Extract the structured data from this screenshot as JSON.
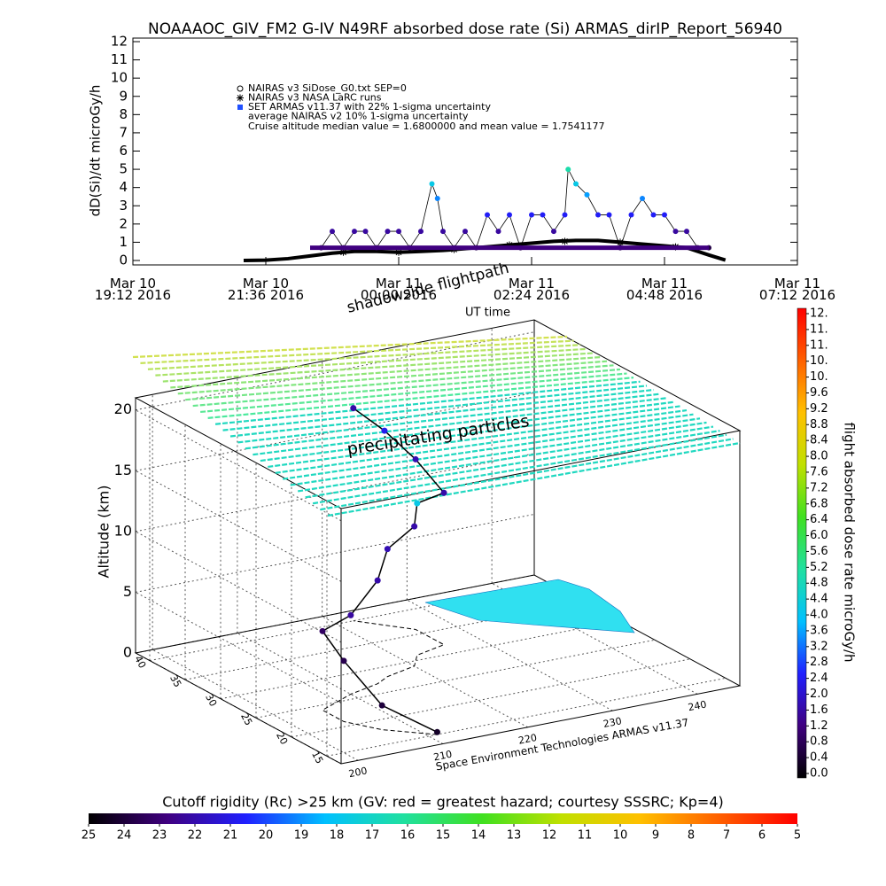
{
  "chart_data": [
    {
      "type": "scatter",
      "title": "NOAAAOC_GIV_FM2 G-IV   N49RF  absorbed dose rate (Si) ARMAS_dirIP_Report_56940",
      "ylabel": "dD(Si)/dt microGy/h",
      "xlim": [
        19.2,
        31.2
      ],
      "xticks": [
        {
          "value": 19.2,
          "label": "Mar 10\n19:12 2016"
        },
        {
          "value": 21.6,
          "label": "Mar 10\n21:36 2016"
        },
        {
          "value": 24,
          "label": "Mar 11\n00:00 2016"
        },
        {
          "value": 26.4,
          "label": "Mar 11\n02:24 2016"
        },
        {
          "value": 28.8,
          "label": "Mar 11\n04:48 2016"
        },
        {
          "value": 31.2,
          "label": "Mar 11\n07:12 2016"
        }
      ],
      "ylim": [
        0,
        12
      ],
      "yticks": [
        0,
        1,
        2,
        3,
        4,
        5,
        6,
        7,
        8,
        9,
        10,
        11,
        12
      ],
      "series": [
        {
          "name": "NAIRAS v3 SiDose_G0.txt SEP=0",
          "color": "#000000",
          "marker": "circle",
          "x": [
            21.2,
            21.6,
            22,
            22.4,
            22.8,
            23.2,
            23.6,
            24,
            24.4,
            24.8,
            25.2,
            25.6,
            26,
            26.4,
            26.8,
            27.2,
            27.6,
            28,
            28.4,
            28.8,
            29.2,
            29.6,
            29.9
          ],
          "values": [
            0,
            0.02,
            0.1,
            0.25,
            0.4,
            0.5,
            0.5,
            0.45,
            0.5,
            0.55,
            0.65,
            0.75,
            0.85,
            0.95,
            1.05,
            1.1,
            1.1,
            1.0,
            0.9,
            0.8,
            0.7,
            0.3,
            0.02
          ]
        },
        {
          "name": "NAIRAS v3 NASA LaRC runs",
          "color": "#000000",
          "marker": "asterisk",
          "x": [
            23,
            24,
            25,
            26,
            27,
            28,
            29
          ],
          "values": [
            0.45,
            0.45,
            0.6,
            0.85,
            1.05,
            1.0,
            0.75
          ]
        },
        {
          "name": "SET ARMAS v11.37 with 22% 1-sigma uncertainty",
          "color": "#2050ff",
          "marker": "square",
          "x": [
            22.6,
            22.8,
            23.0,
            23.2,
            23.4,
            23.6,
            23.8,
            24.0,
            24.2,
            24.4,
            24.6,
            24.7,
            24.8,
            25.0,
            25.2,
            25.4,
            25.6,
            25.8,
            26.0,
            26.2,
            26.4,
            26.6,
            26.8,
            27.0,
            27.06,
            27.2,
            27.4,
            27.6,
            27.8,
            28.0,
            28.2,
            28.4,
            28.6,
            28.8,
            29.0,
            29.2,
            29.4,
            29.6
          ],
          "values": [
            0.7,
            1.6,
            0.7,
            1.6,
            1.6,
            0.7,
            1.6,
            1.6,
            0.7,
            1.6,
            4.2,
            3.4,
            1.6,
            0.7,
            1.6,
            0.7,
            2.5,
            1.6,
            2.5,
            0.7,
            2.5,
            2.5,
            1.6,
            2.5,
            5.0,
            4.2,
            3.6,
            2.5,
            2.5,
            0.7,
            2.5,
            3.4,
            2.5,
            2.5,
            1.6,
            1.6,
            0.7,
            0.7
          ]
        },
        {
          "name": "average NAIRAS v2 10% 1-sigma uncertainty",
          "color": "#400080",
          "marker": "line",
          "x": [
            22.4,
            29.6
          ],
          "values": [
            0.7,
            0.7
          ]
        }
      ],
      "annotation": "Cruise altitude median value = 1.6800000 and mean value = 1.7541177"
    },
    {
      "type": "scatter3d",
      "zlabel": "Altitude (km)",
      "xlim": [
        198,
        245
      ],
      "xticks": [
        200,
        210,
        220,
        230,
        240
      ],
      "ylim": [
        13,
        42
      ],
      "yticks": [
        15,
        20,
        25,
        30,
        35,
        40
      ],
      "zlim": [
        0,
        21
      ],
      "zticks": [
        0,
        5,
        10,
        15,
        20
      ],
      "annotations": [
        "shadowside flightpath",
        "UT time",
        "precipitating particles",
        "Space Environment Technologies ARMAS v11.37"
      ],
      "x": [
        211,
        207,
        205,
        205,
        210,
        214,
        216,
        220,
        222,
        226,
        226,
        224,
        222
      ],
      "y": [
        15,
        18,
        21,
        24,
        26,
        27,
        28,
        29,
        31,
        32,
        36,
        38,
        40
      ],
      "z": [
        0.2,
        2,
        5,
        6.5,
        6.5,
        8.5,
        10.5,
        11.5,
        12.5,
        12.5,
        14,
        16,
        17.5
      ],
      "values": [
        0.4,
        0.6,
        0.8,
        1.0,
        1.6,
        1.7,
        1.8,
        1.7,
        4.2,
        1.7,
        1.8,
        2.4,
        1.7
      ]
    },
    {
      "type": "colorbar",
      "label": "flight absorbed dose rate microGy/h",
      "ylim": [
        0,
        11.6
      ],
      "yticks": [
        {
          "value": 0,
          "label": "0.0"
        },
        0.4,
        0.8,
        1.2,
        1.6,
        {
          "value": 2,
          "label": "2.0"
        },
        2.4,
        2.8,
        3.2,
        3.6,
        {
          "value": 4,
          "label": "4.0"
        },
        4.4,
        4.8,
        5.2,
        5.6,
        {
          "value": 6,
          "label": "6.0"
        },
        6.4,
        6.8,
        7.2,
        7.6,
        {
          "value": 8,
          "label": "8.0"
        },
        8.4,
        8.8,
        9.2,
        9.6,
        {
          "value": 10,
          "label": "10."
        },
        {
          "value": 10.4,
          "label": "10."
        },
        {
          "value": 10.8,
          "label": "11."
        },
        {
          "value": 11.2,
          "label": "11."
        },
        {
          "value": 11.6,
          "label": "12."
        }
      ],
      "colors": [
        "#000000",
        "#400080",
        "#2020ff",
        "#00c0ff",
        "#20e0a0",
        "#40e020",
        "#c0e000",
        "#ffc000",
        "#ff6000",
        "#ff0000"
      ]
    },
    {
      "type": "colorbar",
      "title": "Cutoff rigidity (Rc) >25 km (GV: red = greatest hazard; courtesy SSSRC; Kp=4)",
      "xlim": [
        25,
        5
      ],
      "xticks": [
        25,
        24,
        23,
        22,
        21,
        20,
        19,
        18,
        17,
        16,
        15,
        14,
        13,
        12,
        11,
        10,
        9,
        8,
        7,
        6,
        5
      ],
      "colors": [
        "#000000",
        "#400080",
        "#2020ff",
        "#00c0ff",
        "#20e0a0",
        "#40e020",
        "#c0e000",
        "#ffc000",
        "#ff6000",
        "#ff0000"
      ]
    }
  ]
}
